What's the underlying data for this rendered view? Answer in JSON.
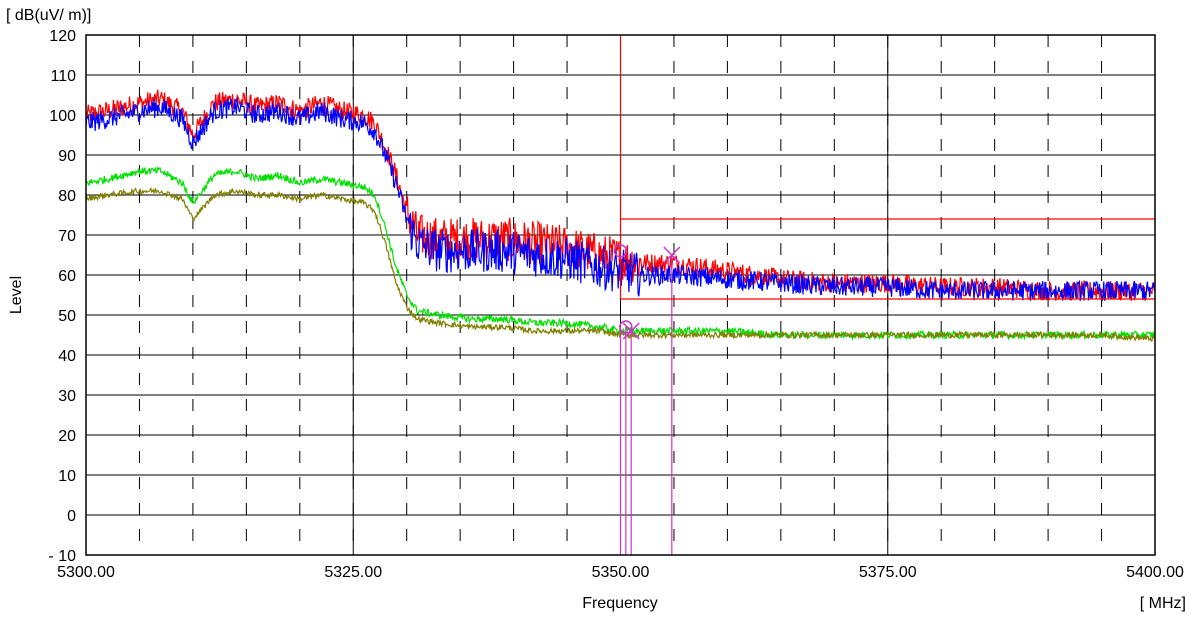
{
  "chart_data": {
    "type": "line",
    "title": "",
    "units": {
      "y": "[ dB(uV/ m)]",
      "x": "[ MHz]"
    },
    "ylabel": "Level",
    "xlabel": "Frequency",
    "xlim": [
      5300,
      5400
    ],
    "ylim": [
      -10,
      120
    ],
    "x_ticks": [
      "5300.00",
      "5325.00",
      "5350.00",
      "5375.00",
      "5400.00"
    ],
    "y_ticks": [
      "120",
      "110",
      "100",
      "90",
      "80",
      "70",
      "60",
      "50",
      "40",
      "30",
      "20",
      "10",
      "0",
      "- 10"
    ],
    "grid": true,
    "colors": {
      "red": "#ff0000",
      "blue": "#0000ff",
      "green": "#00e000",
      "olive": "#808000",
      "marker": "#cc33cc"
    },
    "series": [
      {
        "color": "red",
        "x": [
          5300,
          5302,
          5305,
          5307,
          5309,
          5310,
          5312,
          5314,
          5316,
          5318,
          5320,
          5322,
          5324,
          5326,
          5327,
          5328,
          5329,
          5330,
          5331,
          5333,
          5336,
          5339,
          5342,
          5345,
          5348,
          5350,
          5352,
          5355,
          5360,
          5365,
          5370,
          5375,
          5380,
          5385,
          5390,
          5395,
          5400
        ],
        "y": [
          100,
          101,
          103,
          104,
          101,
          95,
          103,
          104,
          102,
          103,
          101,
          103,
          101,
          100,
          98,
          92,
          85,
          76,
          70,
          69,
          69,
          69,
          68,
          67,
          65,
          64,
          63,
          63,
          61,
          59,
          58,
          58,
          57,
          57,
          56,
          56,
          56
        ]
      },
      {
        "color": "blue",
        "x": [
          5300,
          5302,
          5305,
          5307,
          5309,
          5310,
          5312,
          5314,
          5316,
          5318,
          5320,
          5322,
          5324,
          5326,
          5327,
          5328,
          5329,
          5330,
          5331,
          5333,
          5336,
          5339,
          5342,
          5345,
          5348,
          5350,
          5352,
          5355,
          5360,
          5365,
          5370,
          5375,
          5380,
          5385,
          5390,
          5395,
          5400
        ],
        "y": [
          98,
          99,
          101,
          102,
          99,
          93,
          101,
          102,
          100,
          101,
          99,
          101,
          99,
          98,
          96,
          90,
          83,
          74,
          68,
          66,
          66,
          66,
          65,
          64,
          62,
          61,
          60,
          60,
          59,
          58,
          57,
          57,
          56,
          56,
          56,
          56,
          56
        ]
      },
      {
        "color": "green",
        "x": [
          5300,
          5302,
          5305,
          5307,
          5309,
          5310,
          5312,
          5314,
          5316,
          5318,
          5320,
          5322,
          5324,
          5326,
          5327,
          5328,
          5329,
          5330,
          5331,
          5333,
          5336,
          5339,
          5342,
          5345,
          5348,
          5350,
          5352,
          5355,
          5360,
          5365,
          5370,
          5375,
          5380,
          5385,
          5390,
          5395,
          5400
        ],
        "y": [
          83,
          84,
          86,
          86,
          83,
          78,
          85,
          86,
          84,
          85,
          83,
          84,
          83,
          82,
          80,
          72,
          62,
          55,
          51,
          50,
          49,
          49,
          48,
          48,
          47,
          46,
          46,
          46,
          46,
          45,
          45,
          45,
          45,
          45,
          45,
          45,
          45
        ]
      },
      {
        "color": "olive",
        "x": [
          5300,
          5302,
          5305,
          5307,
          5309,
          5310,
          5312,
          5314,
          5316,
          5318,
          5320,
          5322,
          5324,
          5326,
          5327,
          5328,
          5329,
          5330,
          5331,
          5333,
          5336,
          5339,
          5342,
          5345,
          5348,
          5350,
          5352,
          5355,
          5360,
          5365,
          5370,
          5375,
          5380,
          5385,
          5390,
          5395,
          5400
        ],
        "y": [
          79,
          80,
          81,
          81,
          79,
          74,
          80,
          81,
          80,
          80,
          79,
          80,
          79,
          78,
          76,
          68,
          58,
          52,
          49,
          48,
          47,
          47,
          46,
          46,
          46,
          45,
          45,
          45,
          45,
          45,
          45,
          45,
          45,
          45,
          45,
          45,
          44
        ]
      }
    ],
    "limit_lines": [
      {
        "color": "red",
        "x": [
          5350,
          5400
        ],
        "y": 74
      },
      {
        "color": "red",
        "x": [
          5350,
          5400
        ],
        "y": 54
      }
    ],
    "vertical_lines": [
      {
        "color": "red",
        "x": 5350,
        "y_top": 120,
        "y_bottom": 54
      },
      {
        "color": "marker",
        "x": 5350.0,
        "y_top": 47,
        "y_bottom": -10
      },
      {
        "color": "marker",
        "x": 5350.5,
        "y_top": 47,
        "y_bottom": -10
      },
      {
        "color": "marker",
        "x": 5351.0,
        "y_top": 46,
        "y_bottom": -10
      },
      {
        "color": "marker",
        "x": 5354.8,
        "y_top": 65,
        "y_bottom": -10
      }
    ],
    "markers": [
      {
        "shape": "circle",
        "x": 5350.0,
        "y": 66
      },
      {
        "shape": "x",
        "x": 5354.8,
        "y": 65
      },
      {
        "shape": "circle",
        "x": 5350.5,
        "y": 47
      },
      {
        "shape": "x",
        "x": 5351.0,
        "y": 46
      }
    ]
  }
}
